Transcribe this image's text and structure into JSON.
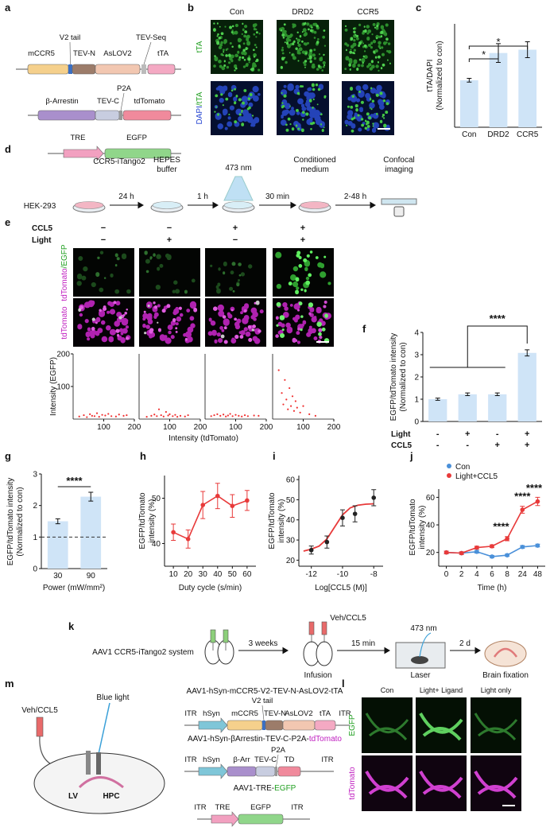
{
  "panel_a": {
    "label": "a",
    "construct_1": {
      "parts": [
        "mCCR5",
        "V2 tail",
        "TEV-N",
        "AsLOV2",
        "TEV-Seq",
        "tTA"
      ]
    },
    "construct_2": {
      "parts": [
        "β-Arrestin",
        "TEV-C",
        "P2A",
        "tdTomato"
      ]
    },
    "construct_3": {
      "parts": [
        "TRE",
        "EGFP"
      ]
    }
  },
  "panel_b": {
    "label": "b",
    "columns": [
      "Con",
      "DRD2",
      "CCR5"
    ],
    "rows": [
      [
        "tTA"
      ],
      [
        "DAPI",
        "/tTA"
      ]
    ]
  },
  "panel_c": {
    "label": "c",
    "chart_data": {
      "type": "bar",
      "y_label": [
        "tTA/DAPI",
        "(Normalized to con)"
      ],
      "categories": [
        "Con",
        "DRD2",
        "CCR5"
      ],
      "values": [
        1.0,
        1.58,
        1.65
      ],
      "errors": [
        0.04,
        0.2,
        0.17
      ],
      "ylim": [
        0,
        2.2
      ],
      "color": "#cfe4f7",
      "annotations": [
        "*",
        "*"
      ]
    }
  },
  "panel_d": {
    "label": "d",
    "system": "CCR5-iTango2",
    "cell": "HEK-293",
    "steps": [
      "24 h",
      "1 h",
      "30 min",
      "2-48 h"
    ],
    "stages": [
      [
        "HEPES",
        "buffer"
      ],
      [
        "473 nm"
      ],
      [
        "Conditioned",
        "medium"
      ],
      [
        "Confocal",
        "imaging"
      ]
    ]
  },
  "panel_e": {
    "label": "e",
    "condition_rows": [
      {
        "name": "CCL5",
        "levels": [
          "−",
          "−",
          "+",
          "+"
        ]
      },
      {
        "name": "Light",
        "levels": [
          "−",
          "+",
          "−",
          "+"
        ]
      }
    ],
    "image_rows": [
      [
        "tdTomato",
        "/EGFP"
      ],
      [
        "tdTomato"
      ]
    ],
    "chart_data": {
      "type": "scatter",
      "x_label": "Intensity (tdTomato)",
      "y_label": "Intensity (EGFP)",
      "xlim": [
        0,
        200
      ],
      "ylim": [
        0,
        200
      ],
      "xticks": [
        100,
        200
      ],
      "yticks": [
        100,
        200
      ],
      "color": "#f03030",
      "panels": [
        {
          "x": [
            20,
            35,
            45,
            55,
            62,
            70,
            78,
            85,
            95,
            105,
            115,
            125,
            140,
            150,
            165,
            175
          ],
          "y": [
            8,
            12,
            6,
            15,
            10,
            9,
            18,
            7,
            13,
            11,
            16,
            9,
            8,
            14,
            10,
            12
          ]
        },
        {
          "x": [
            25,
            40,
            50,
            58,
            65,
            72,
            80,
            88,
            95,
            100,
            110,
            118,
            125,
            135,
            150,
            160
          ],
          "y": [
            7,
            10,
            14,
            9,
            30,
            12,
            8,
            22,
            11,
            15,
            9,
            13,
            7,
            10,
            8,
            12
          ]
        },
        {
          "x": [
            20,
            30,
            40,
            50,
            60,
            68,
            75,
            82,
            90,
            100,
            110,
            120,
            130,
            140,
            160,
            175
          ],
          "y": [
            9,
            12,
            15,
            10,
            14,
            8,
            11,
            16,
            9,
            13,
            10,
            8,
            12,
            9,
            11,
            10
          ]
        },
        {
          "x": [
            20,
            30,
            35,
            40,
            45,
            50,
            55,
            60,
            65,
            70,
            75,
            80,
            90,
            100,
            120,
            140
          ],
          "y": [
            150,
            80,
            45,
            120,
            60,
            30,
            95,
            40,
            70,
            25,
            55,
            35,
            20,
            40,
            15,
            10
          ]
        }
      ]
    }
  },
  "panel_f": {
    "label": "f",
    "chart_data": {
      "type": "bar",
      "y_label": [
        "EGFP/tdTomato intensity",
        "(Normalized to con)"
      ],
      "values": [
        1.0,
        1.22,
        1.22,
        3.08
      ],
      "errors": [
        0.05,
        0.06,
        0.06,
        0.14
      ],
      "ylim": [
        0,
        4
      ],
      "yticks": [
        0,
        1,
        2,
        3,
        4
      ],
      "color": "#cfe4f7",
      "conditions": [
        {
          "name": "Light",
          "levels": [
            "-",
            "+",
            "-",
            "+"
          ]
        },
        {
          "name": "CCL5",
          "levels": [
            "-",
            "-",
            "+",
            "+"
          ]
        }
      ],
      "annotation": "****"
    }
  },
  "panel_g": {
    "label": "g",
    "chart_data": {
      "type": "bar",
      "y_label": [
        "EGFP/tdTomato intensity",
        "(Normalized to con)"
      ],
      "x_label": "Power (mW/mm²)",
      "categories": [
        "30",
        "90"
      ],
      "values": [
        1.5,
        2.28
      ],
      "errors": [
        0.08,
        0.14
      ],
      "ylim": [
        0,
        3
      ],
      "yticks": [
        0,
        1,
        2,
        3
      ],
      "color": "#cfe4f7",
      "reference_line": 1,
      "annotation": "****"
    }
  },
  "panel_h": {
    "label": "h",
    "chart_data": {
      "type": "line",
      "y_label": [
        "EGFP/tdTomato",
        "intensity (%)"
      ],
      "x_label": "Duty cycle (s/min)",
      "x": [
        10,
        20,
        30,
        40,
        50,
        60
      ],
      "values": [
        42.5,
        41,
        48.5,
        50.5,
        48.3,
        49.5
      ],
      "errors": [
        1.8,
        2,
        3,
        2.8,
        2.5,
        2.2
      ],
      "xlim": [
        4,
        66
      ],
      "ylim": [
        35,
        55
      ],
      "xticks": [
        10,
        20,
        30,
        40,
        50,
        60
      ],
      "yticks": [
        40,
        50
      ],
      "color": "#e83a3a"
    }
  },
  "panel_i": {
    "label": "i",
    "chart_data": {
      "type": "dose_response",
      "y_label": [
        "EGFP/tdTomato",
        "intensity (%)"
      ],
      "x_label": "Log[CCL5 (M)]",
      "x": [
        -12,
        -11,
        -10,
        -9.2,
        -8
      ],
      "values": [
        25,
        29,
        41,
        43,
        51
      ],
      "errors": [
        2,
        3,
        4,
        4,
        4
      ],
      "fit": {
        "x": [
          -12.5,
          -12,
          -11.5,
          -11,
          -10.5,
          -10,
          -9.5,
          -9,
          -8.5,
          -8
        ],
        "y": [
          24.5,
          25.5,
          27,
          30.5,
          36.5,
          42.5,
          46,
          47.3,
          47.8,
          48
        ]
      },
      "xlim": [
        -12.8,
        -7.4
      ],
      "ylim": [
        17,
        62
      ],
      "xticks": [
        -12,
        -10,
        -8
      ],
      "yticks": [
        20,
        30,
        40,
        50,
        60
      ],
      "color": "#222222",
      "fit_color": "#e83a3a"
    }
  },
  "panel_j": {
    "label": "j",
    "chart_data": {
      "type": "line",
      "y_label": [
        "EGFP/tdTomato",
        "intensity (%)"
      ],
      "x_label": "Time (h)",
      "categories": [
        "0",
        "2",
        "4",
        "6",
        "8",
        "24",
        "48"
      ],
      "series": [
        {
          "name": "Con",
          "color": "#4a90d9",
          "values": [
            20,
            19.5,
            20.5,
            17,
            18,
            24,
            25
          ],
          "errors": [
            1,
            0.8,
            1,
            0.8,
            0.8,
            1,
            1
          ]
        },
        {
          "name": "Light+CCL5",
          "color": "#e83a3a",
          "values": [
            20,
            19.5,
            23.5,
            24.5,
            30,
            51,
            57
          ],
          "errors": [
            1,
            1,
            1,
            1,
            1.5,
            2.5,
            3
          ]
        }
      ],
      "ylim": [
        10,
        66
      ],
      "yticks": [
        20,
        40,
        60
      ],
      "annotations": [
        "****",
        "****",
        "****"
      ]
    }
  },
  "panel_k": {
    "label": "k",
    "system": "AAV1 CCR5-iTango2 system",
    "steps": [
      "3 weeks",
      "15 min",
      "2 d"
    ],
    "treatment": "Veh/CCL5",
    "light": "473 nm",
    "stages": [
      "Infusion",
      "Laser",
      "Brain fixation"
    ]
  },
  "panel_m": {
    "label": "m",
    "treatment": "Veh/CCL5",
    "light": "Blue light",
    "regions": [
      "LV",
      "HPC"
    ],
    "constructs": [
      {
        "title": [
          "AAV1-hSyn-mCCR5-V2-TEV-N-AsLOV2-tTA"
        ],
        "parts": [
          "ITR",
          "hSyn",
          "mCCR5",
          "V2 tail",
          "TEV-N",
          "AsLOV2",
          "tTA",
          "ITR"
        ]
      },
      {
        "title": [
          "AAV1-hSyn-βArrestin-TEV-C-P2A-",
          "tdTomato"
        ],
        "parts": [
          "ITR",
          "hSyn",
          "β-Arr",
          "TEV-C",
          "P2A",
          "TD",
          "ITR"
        ]
      },
      {
        "title": [
          "AAV1-TRE-",
          "EGFP"
        ],
        "parts": [
          "ITR",
          "TRE",
          "EGFP",
          "ITR"
        ]
      }
    ]
  },
  "panel_l": {
    "label": "l",
    "columns": [
      "Con",
      "Light+ Ligand",
      "Light only"
    ],
    "rows": [
      "EGFP",
      "tdTomato"
    ]
  }
}
